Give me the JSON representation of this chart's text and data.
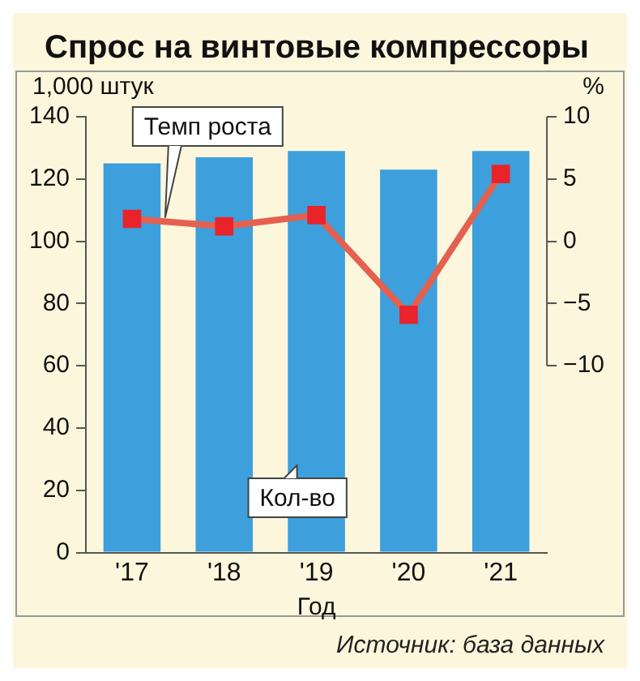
{
  "chart_data": {
    "type": "bar",
    "title": "Спрос на винтовые компрессоры",
    "xlabel": "Год",
    "ylabel": "1,000 штук",
    "y2label": "%",
    "categories": [
      "'17",
      "'18",
      "'19",
      "'20",
      "'21"
    ],
    "series": [
      {
        "name": "Кол-во",
        "color": "#3d9fdc",
        "values": [
          125,
          127,
          129,
          123,
          129
        ]
      },
      {
        "name": "Темп роста",
        "type": "line",
        "axis": "y2",
        "color": "#e5604f",
        "marker": "square",
        "values": [
          1.8,
          1.2,
          2.1,
          -5.9,
          5.4
        ]
      }
    ],
    "ylim": [
      0,
      140
    ],
    "yticks": [
      0,
      20,
      40,
      60,
      80,
      100,
      120,
      140
    ],
    "y2lim": [
      -25,
      10
    ],
    "y2ticks": [
      -10,
      -5,
      0,
      5,
      10
    ],
    "grid": false,
    "legend": false,
    "annotations": [
      "Источник: база данных"
    ]
  }
}
